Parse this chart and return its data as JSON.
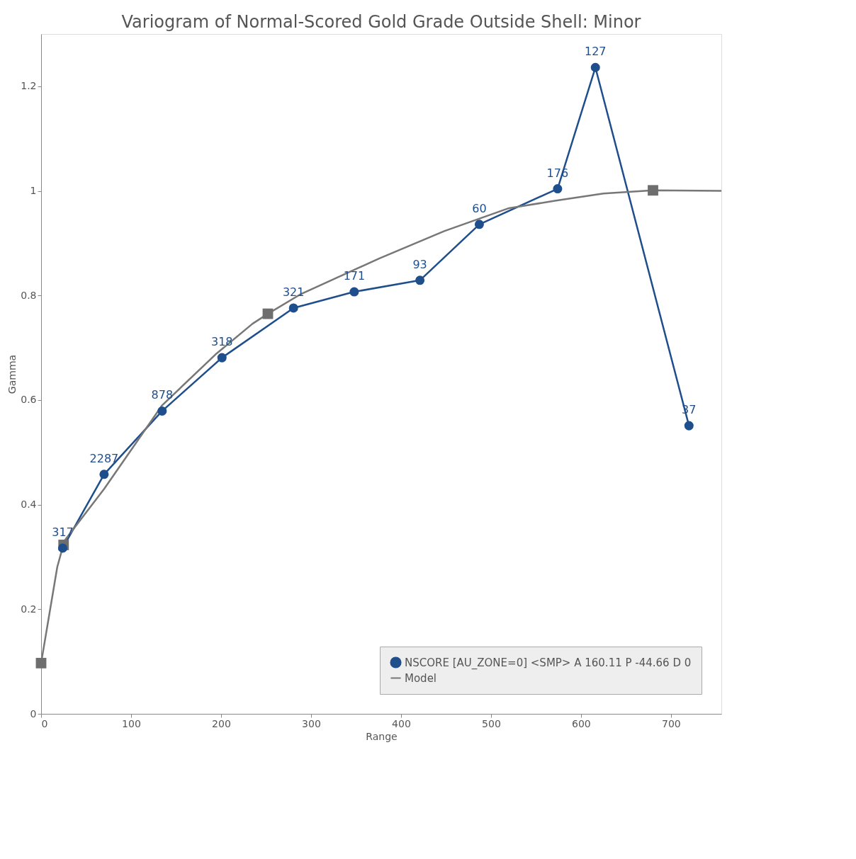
{
  "chart_data": {
    "type": "line",
    "title": "Variogram of Normal-Scored Gold Grade Outside Shell: Minor",
    "xlabel": "Range",
    "ylabel": "Gamma",
    "xlim": [
      0,
      756
    ],
    "ylim": [
      0,
      1.3
    ],
    "xticks": [
      0,
      100,
      200,
      300,
      400,
      500,
      600,
      700
    ],
    "yticks": [
      0,
      0.2,
      0.4,
      0.6,
      0.8,
      1,
      1.2
    ],
    "grid": false,
    "legend": "bottom right",
    "series": [
      {
        "name": "NSCORE [AU_ZONE=0] <SMP> A 160.11 P -44.66 D 0",
        "color": "#1f4e8c",
        "marker": "circle",
        "x": [
          24,
          70,
          134.5,
          201,
          280.5,
          348,
          421,
          487,
          574,
          616,
          720
        ],
        "values": [
          0.317,
          0.458,
          0.579,
          0.681,
          0.776,
          0.807,
          0.829,
          0.936,
          1.004,
          1.236,
          0.551
        ]
      },
      {
        "name": "Model",
        "color": "#777777",
        "marker": "none",
        "x": [
          0,
          18,
          26,
          70,
          134.5,
          195,
          235,
          252,
          289,
          376,
          448,
          520,
          571,
          625,
          680,
          756
        ],
        "values": [
          0.097,
          0.281,
          0.331,
          0.43,
          0.59,
          0.689,
          0.746,
          0.765,
          0.803,
          0.871,
          0.923,
          0.967,
          0.981,
          0.995,
          1.001,
          1.0
        ]
      },
      {
        "type": "scatter",
        "color": "#6e6e6e",
        "marker": "square",
        "x": [
          0,
          25,
          252,
          680
        ],
        "values": [
          0.097,
          0.323,
          0.765,
          1.001
        ]
      }
    ],
    "annotations": [
      {
        "text": "317",
        "x": 24,
        "y": 0.317
      },
      {
        "text": "2287",
        "x": 70,
        "y": 0.458
      },
      {
        "text": "878",
        "x": 134.5,
        "y": 0.579
      },
      {
        "text": "318",
        "x": 201,
        "y": 0.681
      },
      {
        "text": "321",
        "x": 280.5,
        "y": 0.776
      },
      {
        "text": "171",
        "x": 348,
        "y": 0.807
      },
      {
        "text": "93",
        "x": 421,
        "y": 0.829
      },
      {
        "text": "60",
        "x": 487,
        "y": 0.936
      },
      {
        "text": "176",
        "x": 574,
        "y": 1.004
      },
      {
        "text": "127",
        "x": 616,
        "y": 1.236
      },
      {
        "text": "37",
        "x": 720,
        "y": 0.551
      }
    ]
  }
}
